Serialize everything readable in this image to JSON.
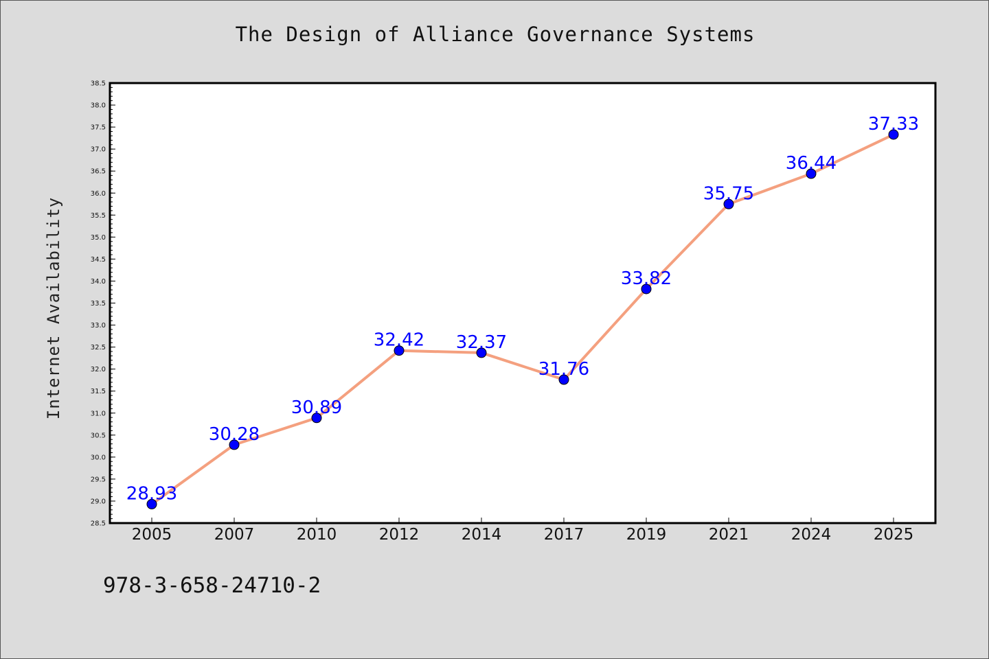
{
  "title": "The Design of Alliance Governance Systems",
  "footer_text": "978-3-658-24710-2",
  "colors": {
    "background": "#dcdcdc",
    "plot_background": "#ffffff",
    "line": "#f4a07f",
    "marker": "#0000ff",
    "data_label": "#0000ff"
  },
  "chart_data": {
    "type": "line",
    "title": "The Design of Alliance Governance Systems",
    "xlabel": "",
    "ylabel": "Internet Availability",
    "categories": [
      "2005",
      "2007",
      "2010",
      "2012",
      "2014",
      "2017",
      "2019",
      "2021",
      "2024",
      "2025"
    ],
    "values": [
      28.93,
      30.28,
      30.89,
      32.42,
      32.37,
      31.76,
      33.82,
      35.75,
      36.44,
      37.33
    ],
    "data_labels": [
      "28.93",
      "30.28",
      "30.89",
      "32.42",
      "32.37",
      "31.76",
      "33.82",
      "35.75",
      "36.44",
      "37.33"
    ],
    "ylim": [
      28.5,
      38.5
    ],
    "yticks": [
      "28.5",
      "29.0",
      "29.5",
      "30.0",
      "30.5",
      "31.0",
      "31.5",
      "32.0",
      "32.5",
      "33.0",
      "33.5",
      "34.0",
      "34.5",
      "35.0",
      "35.5",
      "36.0",
      "36.5",
      "37.0",
      "37.5",
      "38.0",
      "38.5"
    ],
    "grid": false,
    "legend": false
  }
}
